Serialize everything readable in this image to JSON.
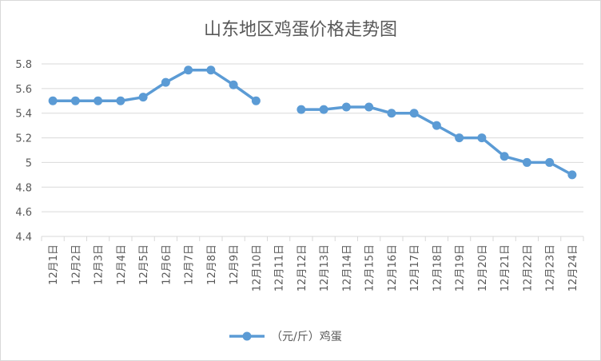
{
  "chart_data": {
    "type": "line",
    "title": "山东地区鸡蛋价格走势图",
    "xlabel": "",
    "ylabel": "",
    "categories": [
      "12月1日",
      "12月2日",
      "12月3日",
      "12月4日",
      "12月5日",
      "12月6日",
      "12月7日",
      "12月8日",
      "12月9日",
      "12月10日",
      "12月11日",
      "12月12日",
      "12月13日",
      "12月14日",
      "12月15日",
      "12月16日",
      "12月17日",
      "12月18日",
      "12月19日",
      "12月20日",
      "12月21日",
      "12月22日",
      "12月23日",
      "12月24日"
    ],
    "series": [
      {
        "name": "（元/斤）鸡蛋",
        "values": [
          5.5,
          5.5,
          5.5,
          5.5,
          5.53,
          5.65,
          5.75,
          5.75,
          5.63,
          5.5,
          null,
          5.43,
          5.43,
          5.45,
          5.45,
          5.4,
          5.4,
          5.3,
          5.2,
          5.2,
          5.05,
          5.0,
          5.0,
          4.9
        ]
      }
    ],
    "ylim": [
      4.4,
      5.8
    ],
    "yticks": [
      "4.4",
      "4.6",
      "4.8",
      "5",
      "5.2",
      "5.4",
      "5.6",
      "5.8"
    ],
    "grid": true,
    "legend": "bottom",
    "colors": {
      "series": "#5b9bd5",
      "grid": "#d9d9d9",
      "text": "#595959"
    }
  }
}
